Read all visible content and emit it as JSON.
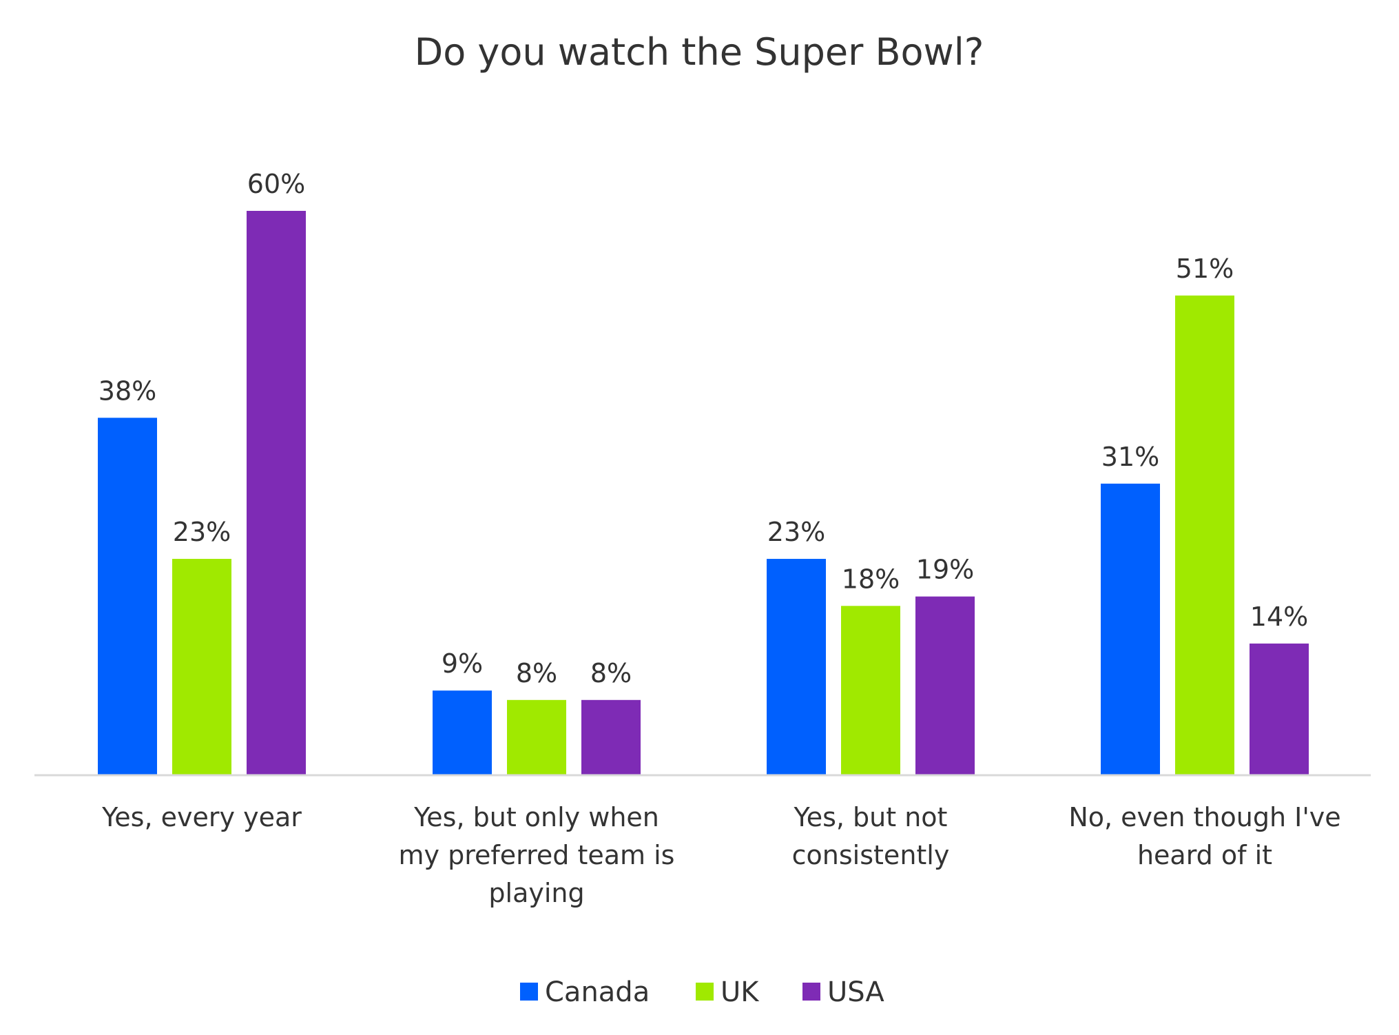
{
  "chart_data": {
    "type": "bar",
    "title": "Do you watch the Super Bowl?",
    "xlabel": "",
    "ylabel": "",
    "ylim": [
      0,
      70
    ],
    "grid": false,
    "legend_position": "bottom",
    "categories": [
      [
        "Yes, every year"
      ],
      [
        "Yes, but only when",
        "my preferred team is",
        "playing"
      ],
      [
        "Yes, but not",
        "consistently"
      ],
      [
        "No, even though I've",
        "heard of it"
      ]
    ],
    "series": [
      {
        "name": "Canada",
        "color": "#0060fe",
        "values": [
          38,
          9,
          23,
          31
        ],
        "labels": [
          "38%",
          "9%",
          "23%",
          "31%"
        ]
      },
      {
        "name": "UK",
        "color": "#a0e900",
        "values": [
          23,
          8,
          18,
          51
        ],
        "labels": [
          "23%",
          "8%",
          "18%",
          "51%"
        ]
      },
      {
        "name": "USA",
        "color": "#7e2bb5",
        "values": [
          60,
          8,
          19,
          14
        ],
        "labels": [
          "60%",
          "8%",
          "19%",
          "14%"
        ]
      }
    ],
    "axis_color": "#d9d9d9"
  }
}
